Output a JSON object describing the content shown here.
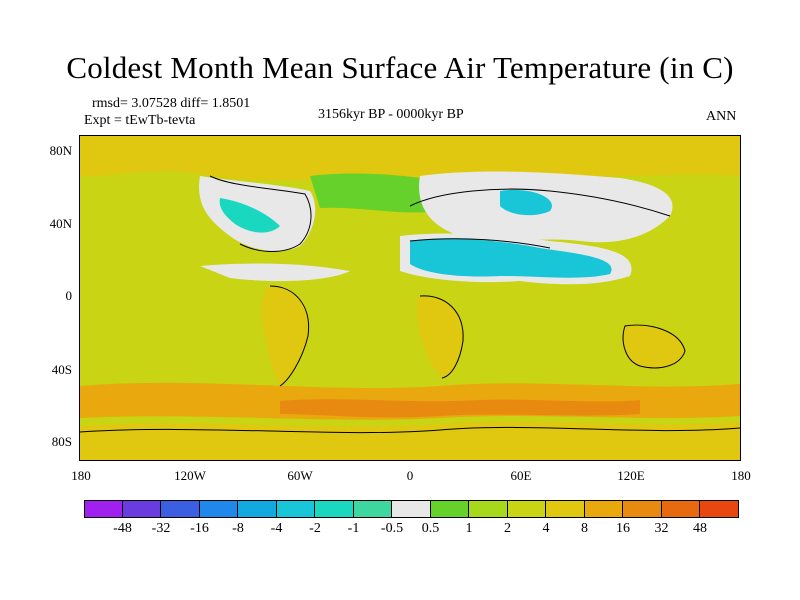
{
  "title": "Coldest Month Mean Surface Air Temperature (in C)",
  "stats": {
    "rmsd_diff": "rmsd= 3.07528 diff= 1.8501",
    "experiment": "Expt = tEwTb-tevta",
    "period": "3156kyr BP - 0000kyr BP",
    "season": "ANN"
  },
  "lat_ticks": [
    "80N",
    "40N",
    "0",
    "40S",
    "80S"
  ],
  "lon_ticks": [
    "180",
    "120W",
    "60W",
    "0",
    "60E",
    "120E",
    "180"
  ],
  "colorbar": {
    "colors": [
      "#a020f0",
      "#6a3ce0",
      "#3a5fe0",
      "#1f88e8",
      "#12a9e0",
      "#18c6d8",
      "#1ad8c0",
      "#3ed7a0",
      "#e8e8e8",
      "#66d12a",
      "#a6d81c",
      "#c8d414",
      "#e0c810",
      "#e8a80e",
      "#e88a10",
      "#e86a10",
      "#e84810"
    ],
    "labels": [
      "-48",
      "-32",
      "-16",
      "-8",
      "-4",
      "-2",
      "-1",
      "-0.5",
      "0.5",
      "1",
      "2",
      "4",
      "8",
      "16",
      "32",
      "48"
    ]
  },
  "map": {
    "ocean_color": "#c8d414",
    "land_warm": "#e0c810",
    "regions": [
      {
        "name": "arctic-warm",
        "color": "#e0c810"
      },
      {
        "name": "north-atlantic-band",
        "color": "#66d12a"
      },
      {
        "name": "eurasia-neutral",
        "color": "#e8e8e8"
      },
      {
        "name": "sahara-cool",
        "color": "#18c6d8"
      },
      {
        "name": "southern-ocean-warm",
        "color": "#e8a80e"
      }
    ]
  }
}
